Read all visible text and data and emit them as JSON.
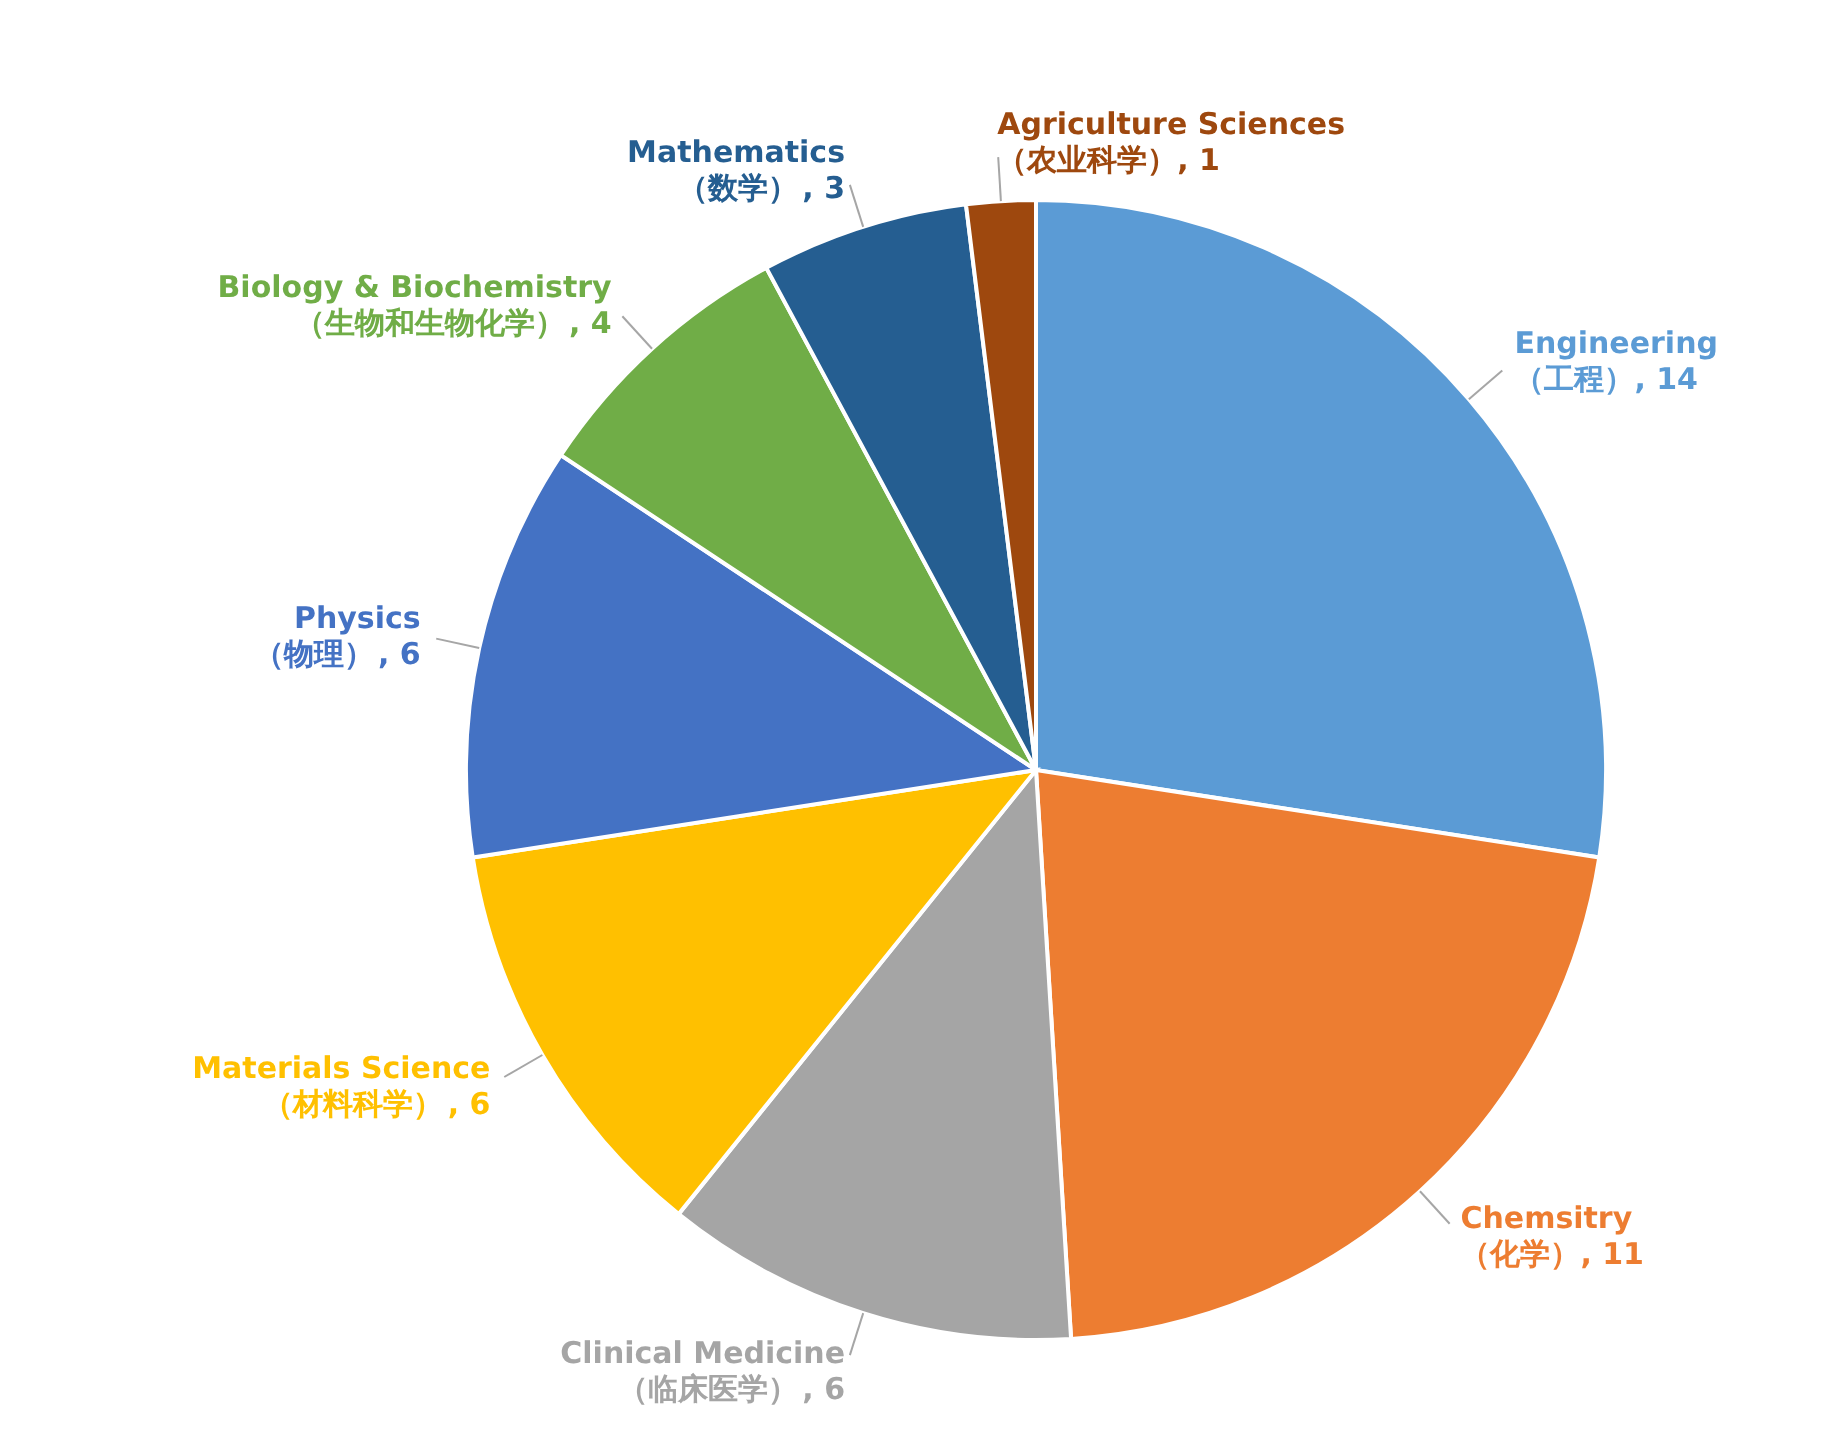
{
  "chart_data": {
    "type": "pie",
    "categories": [
      "Engineering\n（工程）",
      "Chemsitry\n（化学）",
      "Clinical Medicine\n（临床医学）",
      "Materials Science\n（材料科学）",
      "Physics\n（物理）",
      "Biology & Biochemistry\n（生物和生物化学）",
      "Mathematics\n（数学）",
      "Agriculture Sciences\n（农业科学）"
    ],
    "values": [
      14,
      11,
      6,
      6,
      6,
      4,
      3,
      1
    ],
    "value_labels": [
      ", 14",
      ", 11",
      ", 6",
      ", 6",
      ", 6",
      ", 4",
      ", 3",
      ", 1"
    ],
    "colors": [
      "#5b9bd5",
      "#ed7d31",
      "#a5a5a5",
      "#ffc000",
      "#4472c4",
      "#70ad47",
      "#255e91",
      "#9e480e"
    ]
  }
}
